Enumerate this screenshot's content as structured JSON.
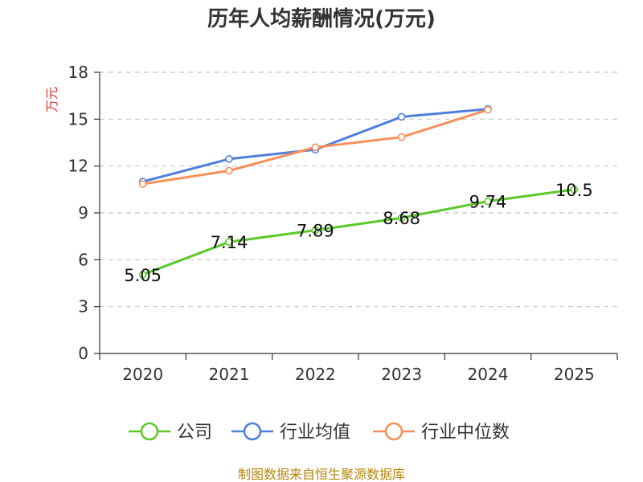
{
  "chart_data": {
    "type": "line",
    "title": "历年人均薪酬情况(万元)",
    "ylabel": "万元",
    "xlabel": "",
    "ylim": [
      0,
      18
    ],
    "yticks": [
      0,
      3,
      6,
      9,
      12,
      15,
      18
    ],
    "categories": [
      "2020",
      "2021",
      "2022",
      "2023",
      "2024",
      "2025"
    ],
    "grid": true,
    "legend_position": "bottom",
    "series": [
      {
        "name": "公司",
        "color": "#5cc82a",
        "values": [
          5.05,
          7.14,
          7.89,
          8.68,
          9.74,
          10.5
        ],
        "labels": [
          "5.05",
          "7.14",
          "7.89",
          "8.68",
          "9.74",
          "10.5"
        ]
      },
      {
        "name": "行业均值",
        "color": "#4f7fdc",
        "values": [
          11.0,
          12.45,
          13.05,
          15.15,
          15.65,
          null
        ]
      },
      {
        "name": "行业中位数",
        "color": "#f5905a",
        "values": [
          10.85,
          11.7,
          13.2,
          13.85,
          15.6,
          null
        ]
      }
    ]
  },
  "footer": {
    "source": "制图数据来自恒生聚源数据库"
  }
}
